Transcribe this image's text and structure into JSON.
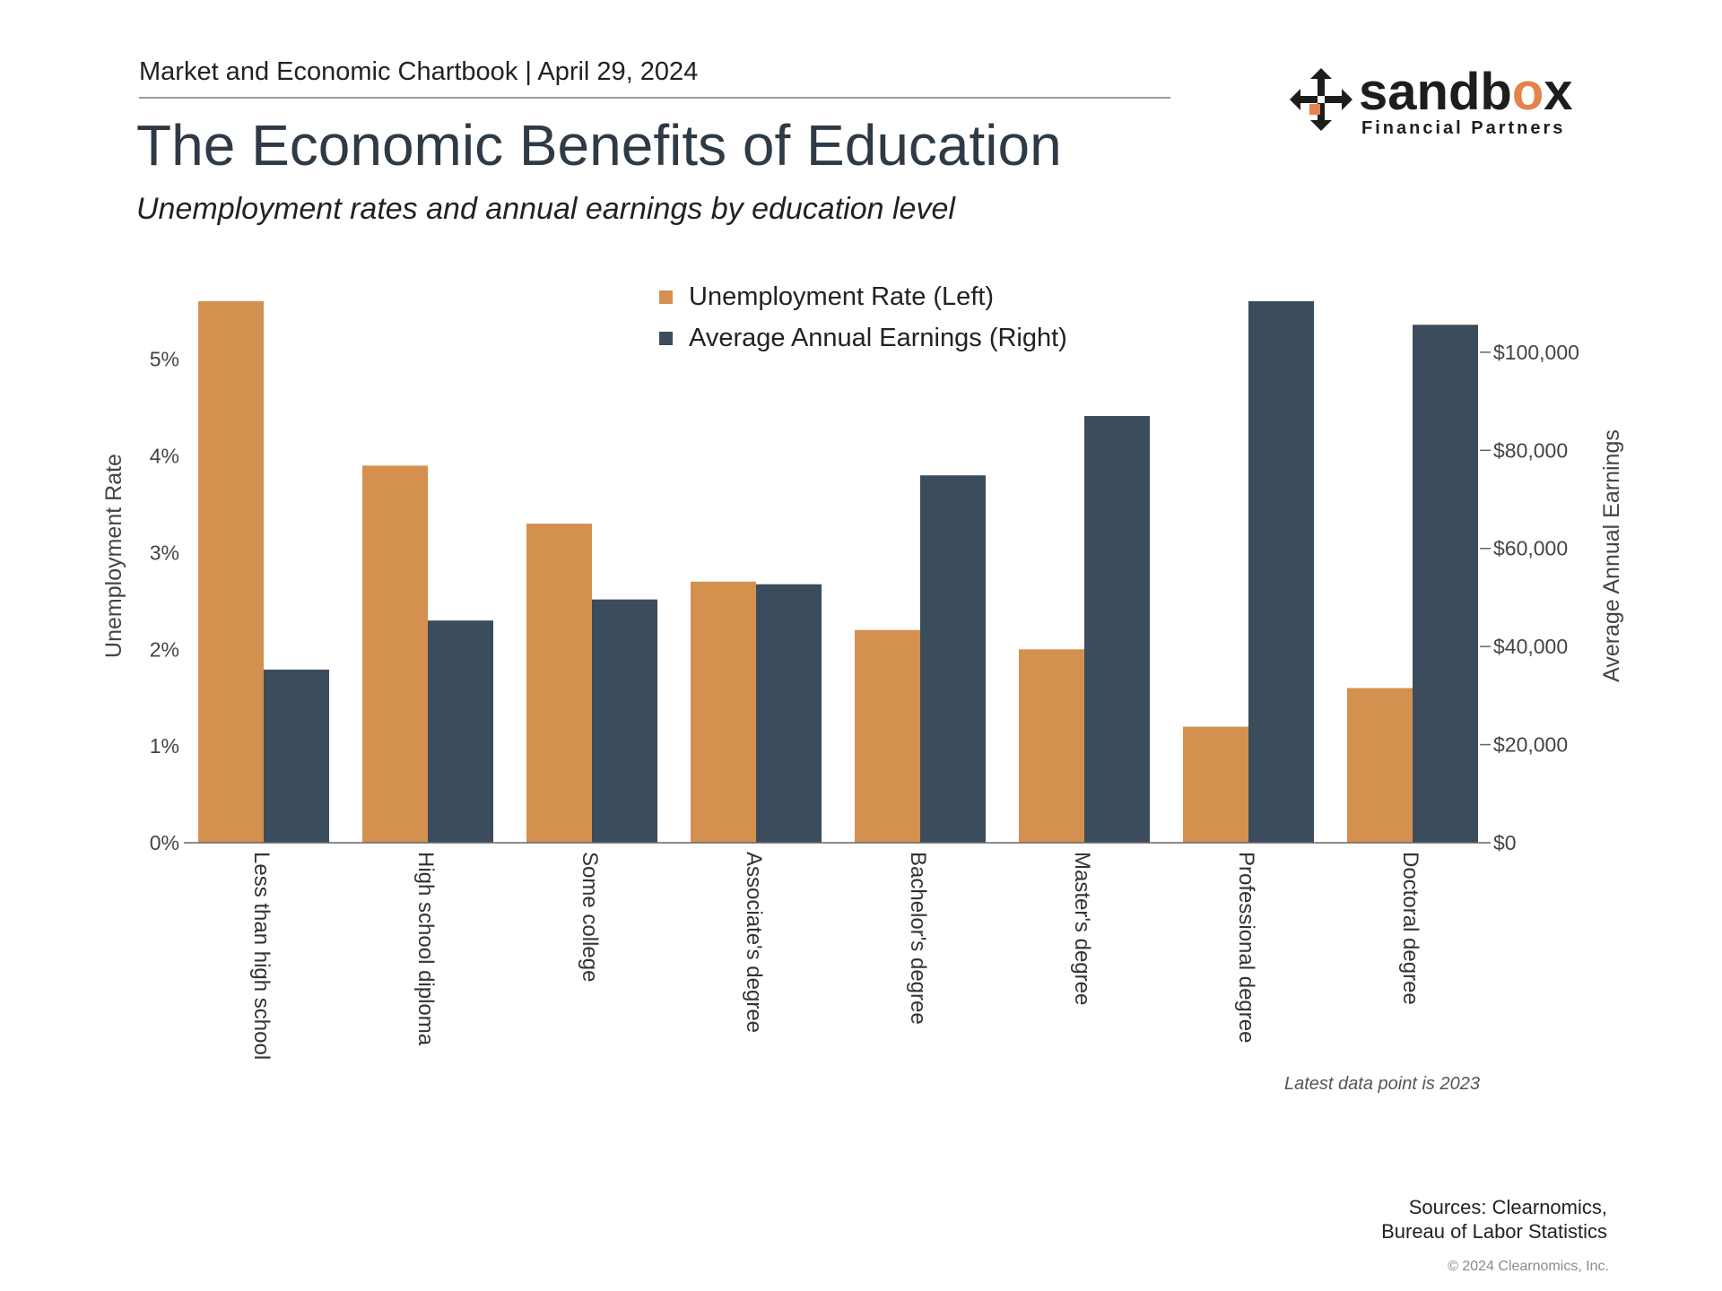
{
  "header": {
    "chartbook": "Market and Economic Chartbook | April 29, 2024",
    "title": "The Economic Benefits of Education",
    "subtitle": "Unemployment rates and annual earnings by education level"
  },
  "logo": {
    "word_prefix": "sandb",
    "word_o": "o",
    "word_suffix": "x",
    "tagline": "Financial Partners",
    "accent_color": "#e4834a"
  },
  "chart_data": {
    "type": "bar",
    "categories": [
      "Less than high school",
      "High school diploma",
      "Some college",
      "Associate's degree",
      "Bachelor's degree",
      "Master's degree",
      "Professional degree",
      "Doctoral degree"
    ],
    "series": [
      {
        "name": "Unemployment Rate (Left)",
        "axis": "left",
        "color": "#d4904f",
        "values": [
          5.6,
          3.9,
          3.3,
          2.7,
          2.2,
          2.0,
          1.2,
          1.6
        ]
      },
      {
        "name": "Average Annual Earnings (Right)",
        "axis": "right",
        "color": "#3b4c5c",
        "values": [
          35300,
          45300,
          49600,
          52700,
          74900,
          87000,
          110400,
          105600
        ]
      }
    ],
    "ylabel_left": "Unemployment Rate",
    "ylabel_right": "Average Annual Earnings",
    "ylim_left": [
      0,
      5.6
    ],
    "ylim_right": [
      0,
      110400
    ],
    "yticks_left": [
      "0%",
      "1%",
      "2%",
      "3%",
      "4%",
      "5%"
    ],
    "yticks_right": [
      "$0",
      "$20,000",
      "$40,000",
      "$60,000",
      "$80,000",
      "$100,000"
    ],
    "legend_position": "top-center",
    "grid": false
  },
  "footer": {
    "note": "Latest data point is 2023",
    "sources_line1": "Sources: Clearnomics,",
    "sources_line2": "Bureau of Labor Statistics",
    "copyright": "© 2024 Clearnomics, Inc."
  }
}
